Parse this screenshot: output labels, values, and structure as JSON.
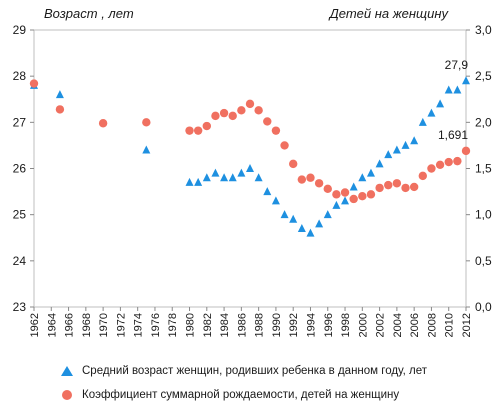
{
  "chart_data": {
    "type": "line",
    "y_left_title": "Возраст , лет",
    "y_right_title": "Детей на женщину",
    "y_left": {
      "min": 23,
      "max": 29,
      "ticks": [
        23,
        24,
        25,
        26,
        27,
        28,
        29
      ]
    },
    "y_right": {
      "min": 0,
      "max": 3,
      "ticks": [
        "0,0",
        "0,5",
        "1,0",
        "1,5",
        "2,0",
        "2,5",
        "3,0"
      ]
    },
    "x": {
      "min": 1962,
      "max": 2012,
      "ticks": [
        1962,
        1964,
        1966,
        1968,
        1970,
        1972,
        1974,
        1976,
        1978,
        1980,
        1982,
        1984,
        1986,
        1988,
        1990,
        1992,
        1994,
        1996,
        1998,
        2000,
        2002,
        2004,
        2006,
        2008,
        2010,
        2012
      ]
    },
    "grid": false,
    "series": [
      {
        "name": "Средний возраст женщин, родивших ребенка в данном году, лет",
        "axis": "left",
        "marker": "triangle",
        "color": "#1e90e0",
        "points": [
          [
            1962,
            27.8
          ],
          [
            1965,
            27.6
          ],
          [
            1975,
            26.4
          ],
          [
            1980,
            25.7
          ],
          [
            1981,
            25.7
          ],
          [
            1982,
            25.8
          ],
          [
            1983,
            25.9
          ],
          [
            1984,
            25.8
          ],
          [
            1985,
            25.8
          ],
          [
            1986,
            25.9
          ],
          [
            1987,
            26.0
          ],
          [
            1988,
            25.8
          ],
          [
            1989,
            25.5
          ],
          [
            1990,
            25.3
          ],
          [
            1991,
            25.0
          ],
          [
            1992,
            24.9
          ],
          [
            1993,
            24.7
          ],
          [
            1994,
            24.6
          ],
          [
            1995,
            24.8
          ],
          [
            1996,
            25.0
          ],
          [
            1997,
            25.2
          ],
          [
            1998,
            25.3
          ],
          [
            1999,
            25.6
          ],
          [
            2000,
            25.8
          ],
          [
            2001,
            25.9
          ],
          [
            2002,
            26.1
          ],
          [
            2003,
            26.3
          ],
          [
            2004,
            26.4
          ],
          [
            2005,
            26.5
          ],
          [
            2006,
            26.6
          ],
          [
            2007,
            27.0
          ],
          [
            2008,
            27.2
          ],
          [
            2009,
            27.4
          ],
          [
            2010,
            27.7
          ],
          [
            2011,
            27.7
          ],
          [
            2012,
            27.9
          ]
        ]
      },
      {
        "name": "Коэффициент суммарной рождаемости, детей на женщину",
        "axis": "right",
        "marker": "circle",
        "color": "#f07060",
        "points": [
          [
            1962,
            2.42
          ],
          [
            1965,
            2.14
          ],
          [
            1970,
            1.99
          ],
          [
            1975,
            2.0
          ],
          [
            1980,
            1.91
          ],
          [
            1981,
            1.91
          ],
          [
            1982,
            1.96
          ],
          [
            1983,
            2.07
          ],
          [
            1984,
            2.1
          ],
          [
            1985,
            2.07
          ],
          [
            1986,
            2.13
          ],
          [
            1987,
            2.2
          ],
          [
            1988,
            2.13
          ],
          [
            1989,
            2.01
          ],
          [
            1990,
            1.91
          ],
          [
            1991,
            1.75
          ],
          [
            1992,
            1.55
          ],
          [
            1993,
            1.38
          ],
          [
            1994,
            1.4
          ],
          [
            1995,
            1.34
          ],
          [
            1996,
            1.28
          ],
          [
            1997,
            1.22
          ],
          [
            1998,
            1.24
          ],
          [
            1999,
            1.17
          ],
          [
            2000,
            1.2
          ],
          [
            2001,
            1.22
          ],
          [
            2002,
            1.29
          ],
          [
            2003,
            1.32
          ],
          [
            2004,
            1.34
          ],
          [
            2005,
            1.29
          ],
          [
            2006,
            1.3
          ],
          [
            2007,
            1.42
          ],
          [
            2008,
            1.5
          ],
          [
            2009,
            1.54
          ],
          [
            2010,
            1.57
          ],
          [
            2011,
            1.58
          ],
          [
            2012,
            1.691
          ]
        ]
      }
    ],
    "annotations": [
      {
        "series": 0,
        "x": 2012,
        "text": "27,9"
      },
      {
        "series": 1,
        "x": 2012,
        "text": "1,691"
      }
    ],
    "legend_position": "bottom"
  },
  "legend": {
    "age_label": "Средний  возраст женщин, родивших ребенка в данном году, лет",
    "fert_label": "Коэффициент  суммарной рождаемости, детей на женщину"
  }
}
